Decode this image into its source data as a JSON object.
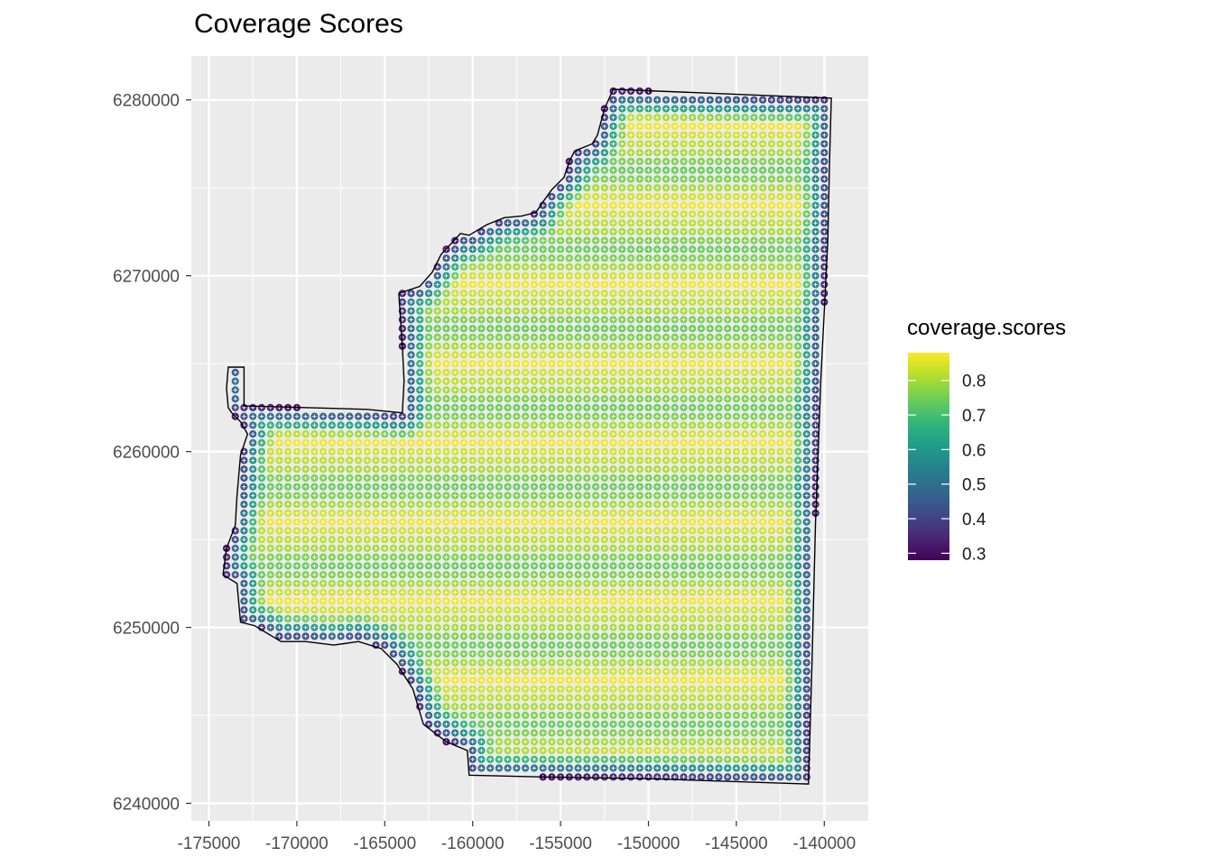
{
  "chart_data": {
    "type": "scatter",
    "title": "Coverage Scores",
    "xlabel": "",
    "ylabel": "",
    "xlim": [
      -176000,
      -137500
    ],
    "ylim": [
      6239000,
      6282500
    ],
    "x_ticks": [
      -175000,
      -170000,
      -165000,
      -160000,
      -155000,
      -150000,
      -145000,
      -140000
    ],
    "x_tick_labels": [
      "-175000",
      "-170000",
      "-165000",
      "-160000",
      "-155000",
      "-150000",
      "-145000",
      "-140000"
    ],
    "y_ticks": [
      6240000,
      6250000,
      6260000,
      6270000,
      6280000
    ],
    "y_tick_labels": [
      "6240000",
      "6250000",
      "6260000",
      "6270000",
      "6280000"
    ],
    "grid": true,
    "point_grid_spacing": 500,
    "point_marker": "filled circle with white cross",
    "color_scale": {
      "name": "viridis",
      "legend_title": "coverage.scores",
      "min": 0.28,
      "max": 0.88,
      "breaks": [
        0.3,
        0.4,
        0.5,
        0.6,
        0.7,
        0.8
      ],
      "break_labels": [
        "0.3",
        "0.4",
        "0.5",
        "0.6",
        "0.7",
        "0.8"
      ],
      "colors": [
        "#440154",
        "#482878",
        "#3E4A89",
        "#31688E",
        "#26828E",
        "#1F9E89",
        "#35B779",
        "#6DCD59",
        "#B4DE2C",
        "#FDE725"
      ]
    },
    "boundary_polygon": [
      [
        -152000,
        6280600
      ],
      [
        -139600,
        6280100
      ],
      [
        -139700,
        6276500
      ],
      [
        -139800,
        6272000
      ],
      [
        -140200,
        6264000
      ],
      [
        -140500,
        6256000
      ],
      [
        -140700,
        6248000
      ],
      [
        -140900,
        6241100
      ],
      [
        -150000,
        6241400
      ],
      [
        -156000,
        6241500
      ],
      [
        -160200,
        6241600
      ],
      [
        -160300,
        6243000
      ],
      [
        -161500,
        6243500
      ],
      [
        -162800,
        6244500
      ],
      [
        -163400,
        6246500
      ],
      [
        -164300,
        6247900
      ],
      [
        -165200,
        6248800
      ],
      [
        -166500,
        6249200
      ],
      [
        -167900,
        6249000
      ],
      [
        -169500,
        6249200
      ],
      [
        -170900,
        6249200
      ],
      [
        -172400,
        6250100
      ],
      [
        -173200,
        6250300
      ],
      [
        -173400,
        6252500
      ],
      [
        -174200,
        6253000
      ],
      [
        -174000,
        6254500
      ],
      [
        -173500,
        6255800
      ],
      [
        -173400,
        6257500
      ],
      [
        -173200,
        6259800
      ],
      [
        -172800,
        6261000
      ],
      [
        -173200,
        6261700
      ],
      [
        -173700,
        6262200
      ],
      [
        -173900,
        6262500
      ],
      [
        -174000,
        6263600
      ],
      [
        -173900,
        6264800
      ],
      [
        -173000,
        6264800
      ],
      [
        -173000,
        6262600
      ],
      [
        -166000,
        6262400
      ],
      [
        -164000,
        6262200
      ],
      [
        -163900,
        6264000
      ],
      [
        -164000,
        6266000
      ],
      [
        -164200,
        6269000
      ],
      [
        -163000,
        6269400
      ],
      [
        -162300,
        6270200
      ],
      [
        -161800,
        6271200
      ],
      [
        -160700,
        6272400
      ],
      [
        -160200,
        6272300
      ],
      [
        -159200,
        6272900
      ],
      [
        -158200,
        6273300
      ],
      [
        -157200,
        6273400
      ],
      [
        -156400,
        6273600
      ],
      [
        -156000,
        6274200
      ],
      [
        -155500,
        6274900
      ],
      [
        -154800,
        6275600
      ],
      [
        -154500,
        6276500
      ],
      [
        -154200,
        6277100
      ],
      [
        -153200,
        6277500
      ],
      [
        -152900,
        6278000
      ],
      [
        -152500,
        6279500
      ],
      [
        -152000,
        6280600
      ]
    ],
    "score_model": {
      "interior_band_values": [
        0.82,
        0.84,
        0.87,
        0.84,
        0.8,
        0.76,
        0.74,
        0.76,
        0.8
      ],
      "band_period_rows": 9,
      "edge_distance_for_full_score": 1600,
      "edge_min_score": 0.3
    }
  }
}
